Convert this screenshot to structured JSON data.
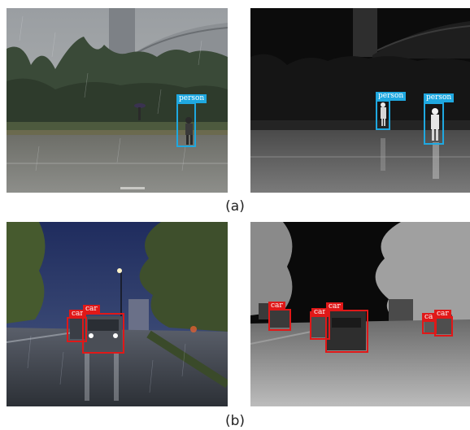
{
  "figure": {
    "captions": [
      "(a)",
      "(b)"
    ],
    "colors": {
      "person_box": "#1fa8e0",
      "car_box": "#e01818"
    },
    "row_a": {
      "rgb_detections": [
        {
          "label": "person"
        }
      ],
      "thermal_detections": [
        {
          "label": "person"
        },
        {
          "label": "person"
        }
      ]
    },
    "row_b": {
      "rgb_detections": [
        {
          "label": "car"
        },
        {
          "label": "car"
        }
      ],
      "thermal_detections": [
        {
          "label": "car"
        },
        {
          "label": "car"
        },
        {
          "label": "car"
        },
        {
          "label": "ca"
        },
        {
          "label": "car"
        }
      ]
    }
  }
}
